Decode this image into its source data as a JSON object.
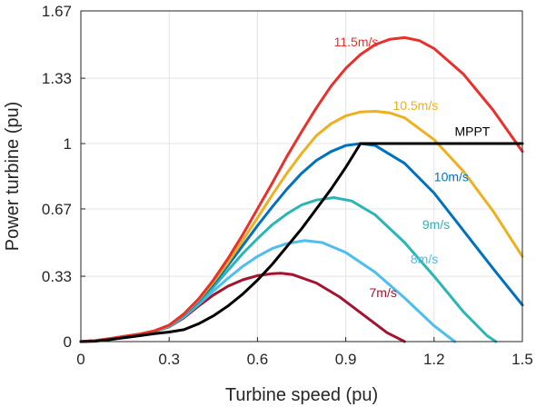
{
  "chart_data": {
    "type": "line",
    "title": "",
    "xlabel": "Turbine speed (pu)",
    "ylabel": "Power turbine (pu)",
    "xlim": [
      0,
      1.5
    ],
    "ylim": [
      0,
      1.67
    ],
    "x_ticks": [
      "0",
      "0.3",
      "0.6",
      "0.9",
      "1.2",
      "1.5"
    ],
    "y_ticks": [
      "0",
      "0.33",
      "0.67",
      "1",
      "1.33",
      "1.67"
    ],
    "grid": true,
    "legend": "none",
    "series": [
      {
        "name": "7m/s",
        "color": "#A2142F",
        "points": [
          [
            0,
            0
          ],
          [
            0.05,
            0.005
          ],
          [
            0.1,
            0.015
          ],
          [
            0.15,
            0.026
          ],
          [
            0.2,
            0.036
          ],
          [
            0.25,
            0.05
          ],
          [
            0.3,
            0.075
          ],
          [
            0.35,
            0.12
          ],
          [
            0.4,
            0.18
          ],
          [
            0.45,
            0.235
          ],
          [
            0.5,
            0.28
          ],
          [
            0.55,
            0.312
          ],
          [
            0.6,
            0.333
          ],
          [
            0.65,
            0.343
          ],
          [
            0.68,
            0.345
          ],
          [
            0.72,
            0.338
          ],
          [
            0.8,
            0.296
          ],
          [
            0.88,
            0.225
          ],
          [
            0.96,
            0.135
          ],
          [
            1.04,
            0.045
          ],
          [
            1.1,
            0
          ]
        ]
      },
      {
        "name": "8m/s",
        "color": "#4DBEEE",
        "points": [
          [
            0,
            0
          ],
          [
            0.05,
            0.005
          ],
          [
            0.1,
            0.015
          ],
          [
            0.15,
            0.026
          ],
          [
            0.2,
            0.037
          ],
          [
            0.25,
            0.05
          ],
          [
            0.3,
            0.077
          ],
          [
            0.35,
            0.125
          ],
          [
            0.4,
            0.188
          ],
          [
            0.45,
            0.255
          ],
          [
            0.5,
            0.32
          ],
          [
            0.55,
            0.38
          ],
          [
            0.6,
            0.43
          ],
          [
            0.65,
            0.47
          ],
          [
            0.7,
            0.495
          ],
          [
            0.76,
            0.51
          ],
          [
            0.82,
            0.5
          ],
          [
            0.9,
            0.45
          ],
          [
            1.0,
            0.35
          ],
          [
            1.1,
            0.22
          ],
          [
            1.2,
            0.08
          ],
          [
            1.27,
            0
          ]
        ]
      },
      {
        "name": "9m/s",
        "color": "#2BB5B5",
        "points": [
          [
            0,
            0
          ],
          [
            0.05,
            0.005
          ],
          [
            0.1,
            0.015
          ],
          [
            0.15,
            0.027
          ],
          [
            0.2,
            0.037
          ],
          [
            0.25,
            0.052
          ],
          [
            0.3,
            0.08
          ],
          [
            0.35,
            0.13
          ],
          [
            0.4,
            0.195
          ],
          [
            0.45,
            0.275
          ],
          [
            0.5,
            0.36
          ],
          [
            0.55,
            0.445
          ],
          [
            0.6,
            0.52
          ],
          [
            0.65,
            0.59
          ],
          [
            0.7,
            0.645
          ],
          [
            0.75,
            0.69
          ],
          [
            0.8,
            0.715
          ],
          [
            0.86,
            0.727
          ],
          [
            0.92,
            0.71
          ],
          [
            1.0,
            0.64
          ],
          [
            1.1,
            0.5
          ],
          [
            1.2,
            0.33
          ],
          [
            1.3,
            0.15
          ],
          [
            1.38,
            0.03
          ],
          [
            1.41,
            0
          ]
        ]
      },
      {
        "name": "10m/s",
        "color": "#0072BD",
        "points": [
          [
            0,
            0
          ],
          [
            0.05,
            0.005
          ],
          [
            0.1,
            0.015
          ],
          [
            0.15,
            0.027
          ],
          [
            0.2,
            0.038
          ],
          [
            0.25,
            0.053
          ],
          [
            0.3,
            0.082
          ],
          [
            0.35,
            0.135
          ],
          [
            0.4,
            0.205
          ],
          [
            0.45,
            0.29
          ],
          [
            0.5,
            0.385
          ],
          [
            0.55,
            0.485
          ],
          [
            0.6,
            0.585
          ],
          [
            0.65,
            0.68
          ],
          [
            0.7,
            0.77
          ],
          [
            0.75,
            0.85
          ],
          [
            0.8,
            0.915
          ],
          [
            0.85,
            0.96
          ],
          [
            0.9,
            0.99
          ],
          [
            0.95,
            1.0
          ],
          [
            1.0,
            0.99
          ],
          [
            1.1,
            0.9
          ],
          [
            1.2,
            0.75
          ],
          [
            1.3,
            0.56
          ],
          [
            1.4,
            0.37
          ],
          [
            1.5,
            0.185
          ]
        ]
      },
      {
        "name": "10.5m/s",
        "color": "#EDB120",
        "points": [
          [
            0,
            0
          ],
          [
            0.05,
            0.005
          ],
          [
            0.1,
            0.015
          ],
          [
            0.15,
            0.027
          ],
          [
            0.2,
            0.038
          ],
          [
            0.25,
            0.053
          ],
          [
            0.3,
            0.082
          ],
          [
            0.35,
            0.137
          ],
          [
            0.4,
            0.21
          ],
          [
            0.45,
            0.3
          ],
          [
            0.5,
            0.4
          ],
          [
            0.55,
            0.51
          ],
          [
            0.6,
            0.625
          ],
          [
            0.65,
            0.74
          ],
          [
            0.7,
            0.85
          ],
          [
            0.75,
            0.95
          ],
          [
            0.8,
            1.04
          ],
          [
            0.85,
            1.1
          ],
          [
            0.9,
            1.14
          ],
          [
            0.95,
            1.16
          ],
          [
            1.0,
            1.163
          ],
          [
            1.05,
            1.155
          ],
          [
            1.1,
            1.13
          ],
          [
            1.2,
            1.02
          ],
          [
            1.3,
            0.86
          ],
          [
            1.4,
            0.66
          ],
          [
            1.5,
            0.43
          ]
        ]
      },
      {
        "name": "11.5m/s",
        "color": "#E8312A",
        "points": [
          [
            0,
            0
          ],
          [
            0.05,
            0.005
          ],
          [
            0.1,
            0.015
          ],
          [
            0.15,
            0.027
          ],
          [
            0.2,
            0.038
          ],
          [
            0.25,
            0.054
          ],
          [
            0.3,
            0.083
          ],
          [
            0.35,
            0.14
          ],
          [
            0.4,
            0.215
          ],
          [
            0.45,
            0.31
          ],
          [
            0.5,
            0.42
          ],
          [
            0.55,
            0.54
          ],
          [
            0.6,
            0.67
          ],
          [
            0.65,
            0.8
          ],
          [
            0.7,
            0.935
          ],
          [
            0.75,
            1.06
          ],
          [
            0.8,
            1.18
          ],
          [
            0.85,
            1.29
          ],
          [
            0.9,
            1.38
          ],
          [
            0.95,
            1.45
          ],
          [
            1.0,
            1.5
          ],
          [
            1.05,
            1.527
          ],
          [
            1.1,
            1.535
          ],
          [
            1.15,
            1.52
          ],
          [
            1.2,
            1.48
          ],
          [
            1.3,
            1.35
          ],
          [
            1.4,
            1.17
          ],
          [
            1.5,
            0.96
          ]
        ]
      },
      {
        "name": "MPPT",
        "color": "#000000",
        "points": [
          [
            0,
            0
          ],
          [
            0.05,
            0.002
          ],
          [
            0.1,
            0.01
          ],
          [
            0.15,
            0.02
          ],
          [
            0.2,
            0.03
          ],
          [
            0.25,
            0.04
          ],
          [
            0.3,
            0.048
          ],
          [
            0.35,
            0.06
          ],
          [
            0.4,
            0.09
          ],
          [
            0.45,
            0.13
          ],
          [
            0.5,
            0.18
          ],
          [
            0.55,
            0.24
          ],
          [
            0.6,
            0.31
          ],
          [
            0.65,
            0.39
          ],
          [
            0.7,
            0.48
          ],
          [
            0.75,
            0.57
          ],
          [
            0.8,
            0.67
          ],
          [
            0.85,
            0.77
          ],
          [
            0.9,
            0.88
          ],
          [
            0.95,
            1.0
          ],
          [
            1.5,
            1.0
          ]
        ]
      }
    ],
    "annotations": [
      {
        "text": "11.5m/s",
        "x": 0.86,
        "y": 1.49,
        "color": "#E8312A"
      },
      {
        "text": "10.5m/s",
        "x": 1.06,
        "y": 1.17,
        "color": "#EDB120"
      },
      {
        "text": "MPPT",
        "x": 1.27,
        "y": 1.04,
        "color": "#000000"
      },
      {
        "text": "10m/s",
        "x": 1.2,
        "y": 0.81,
        "color": "#0072BD"
      },
      {
        "text": "9m/s",
        "x": 1.16,
        "y": 0.57,
        "color": "#2BB5B5"
      },
      {
        "text": "8m/s",
        "x": 1.12,
        "y": 0.395,
        "color": "#4DBEEE"
      },
      {
        "text": "7m/s",
        "x": 0.98,
        "y": 0.225,
        "color": "#A2142F"
      }
    ]
  }
}
